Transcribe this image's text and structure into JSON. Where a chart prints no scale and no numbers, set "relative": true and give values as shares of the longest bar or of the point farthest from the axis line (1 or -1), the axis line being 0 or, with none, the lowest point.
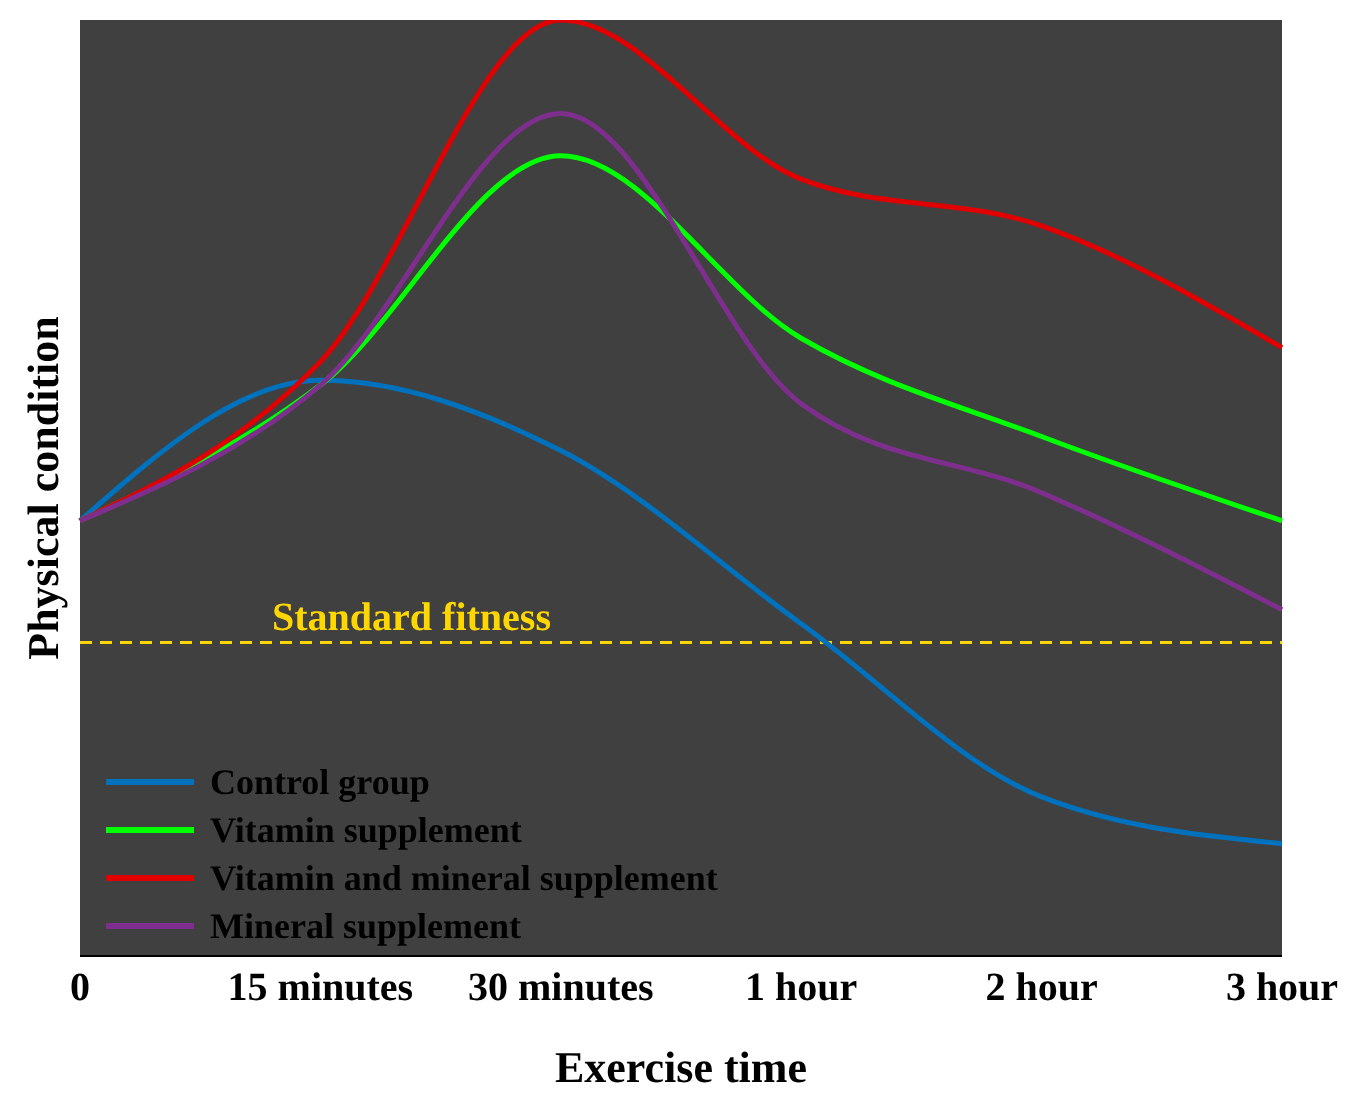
{
  "chart_data": {
    "type": "line",
    "relative": true,
    "xlabel": "Exercise time",
    "ylabel": "Physical condition",
    "categories": [
      "0",
      "15 minutes",
      "30 minutes",
      "1 hour",
      "2 hour",
      "3 hour"
    ],
    "series": [
      {
        "name": "Control group",
        "color": "#0072bd",
        "values": [
          0.465,
          0.615,
          0.54,
          0.355,
          0.17,
          0.12
        ]
      },
      {
        "name": "Vitamin supplement",
        "color": "#00ff00",
        "values": [
          0.465,
          0.61,
          0.855,
          0.66,
          0.555,
          0.465
        ]
      },
      {
        "name": "Vitamin and mineral supplement",
        "color": "#e00000",
        "values": [
          0.465,
          0.635,
          1,
          0.83,
          0.78,
          0.65
        ]
      },
      {
        "name": "Mineral supplement",
        "color": "#7e2f8e",
        "values": [
          0.465,
          0.61,
          0.9,
          0.59,
          0.495,
          0.37
        ]
      }
    ],
    "ref_lines": [
      {
        "axis": "y",
        "value": 0.335,
        "label": "Standard fitness",
        "color": "#ffd700",
        "line_style": "dashed"
      }
    ],
    "legend": "bottom left",
    "marker": "none",
    "line_style": "solid"
  }
}
